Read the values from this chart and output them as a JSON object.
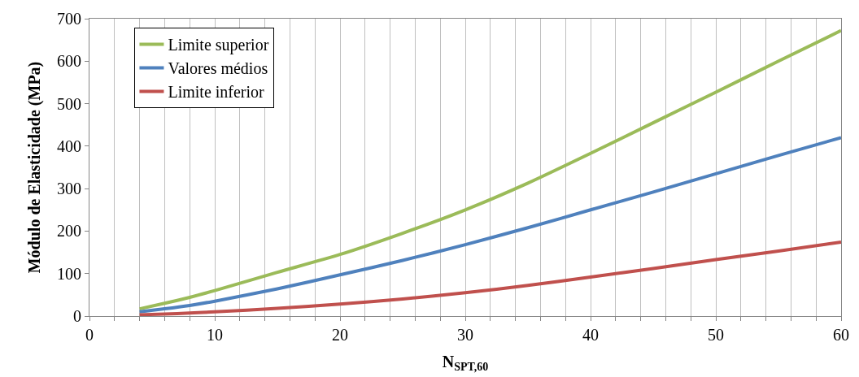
{
  "chart_data": {
    "type": "line",
    "xlabel": "N$_{SPT,60}$",
    "ylabel": "Módulo de Elasticidade (MPa)",
    "x": [
      4,
      6,
      8,
      10,
      15,
      20,
      25,
      30,
      35,
      40,
      45,
      50,
      55,
      60
    ],
    "series": [
      {
        "name": "Limite superior",
        "color": "#9bbb59",
        "values": [
          17,
          30,
          44,
          60,
          103,
          145,
          195,
          250,
          313,
          383,
          455,
          527,
          600,
          672
        ]
      },
      {
        "name": "Valores médios",
        "color": "#4f81bd",
        "values": [
          10,
          17,
          25,
          35,
          64,
          97,
          131,
          168,
          208,
          250,
          292,
          335,
          378,
          420
        ]
      },
      {
        "name": "Limite inferior",
        "color": "#c0504d",
        "values": [
          3,
          5,
          7,
          10,
          18,
          28,
          40,
          55,
          72,
          92,
          112,
          133,
          153,
          174
        ]
      }
    ],
    "xlim": [
      0,
      60
    ],
    "ylim": [
      0,
      700
    ],
    "xticks": [
      0,
      {
        "value": 2,
        "label": null
      },
      {
        "value": 4,
        "label": null
      },
      {
        "value": 6,
        "label": null
      },
      {
        "value": 8,
        "label": null
      },
      10,
      {
        "value": 12,
        "label": null
      },
      {
        "value": 14,
        "label": null
      },
      {
        "value": 16,
        "label": null
      },
      {
        "value": 18,
        "label": null
      },
      20,
      {
        "value": 22,
        "label": null
      },
      {
        "value": 24,
        "label": null
      },
      {
        "value": 26,
        "label": null
      },
      {
        "value": 28,
        "label": null
      },
      30,
      {
        "value": 32,
        "label": null
      },
      {
        "value": 34,
        "label": null
      },
      {
        "value": 36,
        "label": null
      },
      {
        "value": 38,
        "label": null
      },
      40,
      {
        "value": 42,
        "label": null
      },
      {
        "value": 44,
        "label": null
      },
      {
        "value": 46,
        "label": null
      },
      {
        "value": 48,
        "label": null
      },
      50,
      {
        "value": 52,
        "label": null
      },
      {
        "value": 54,
        "label": null
      },
      {
        "value": 56,
        "label": null
      },
      {
        "value": 58,
        "label": null
      },
      60
    ],
    "yticks": [
      0,
      100,
      200,
      300,
      400,
      500,
      600,
      700
    ],
    "grid": "x",
    "legend": "top left",
    "marker": "none",
    "line_style": "solid"
  }
}
